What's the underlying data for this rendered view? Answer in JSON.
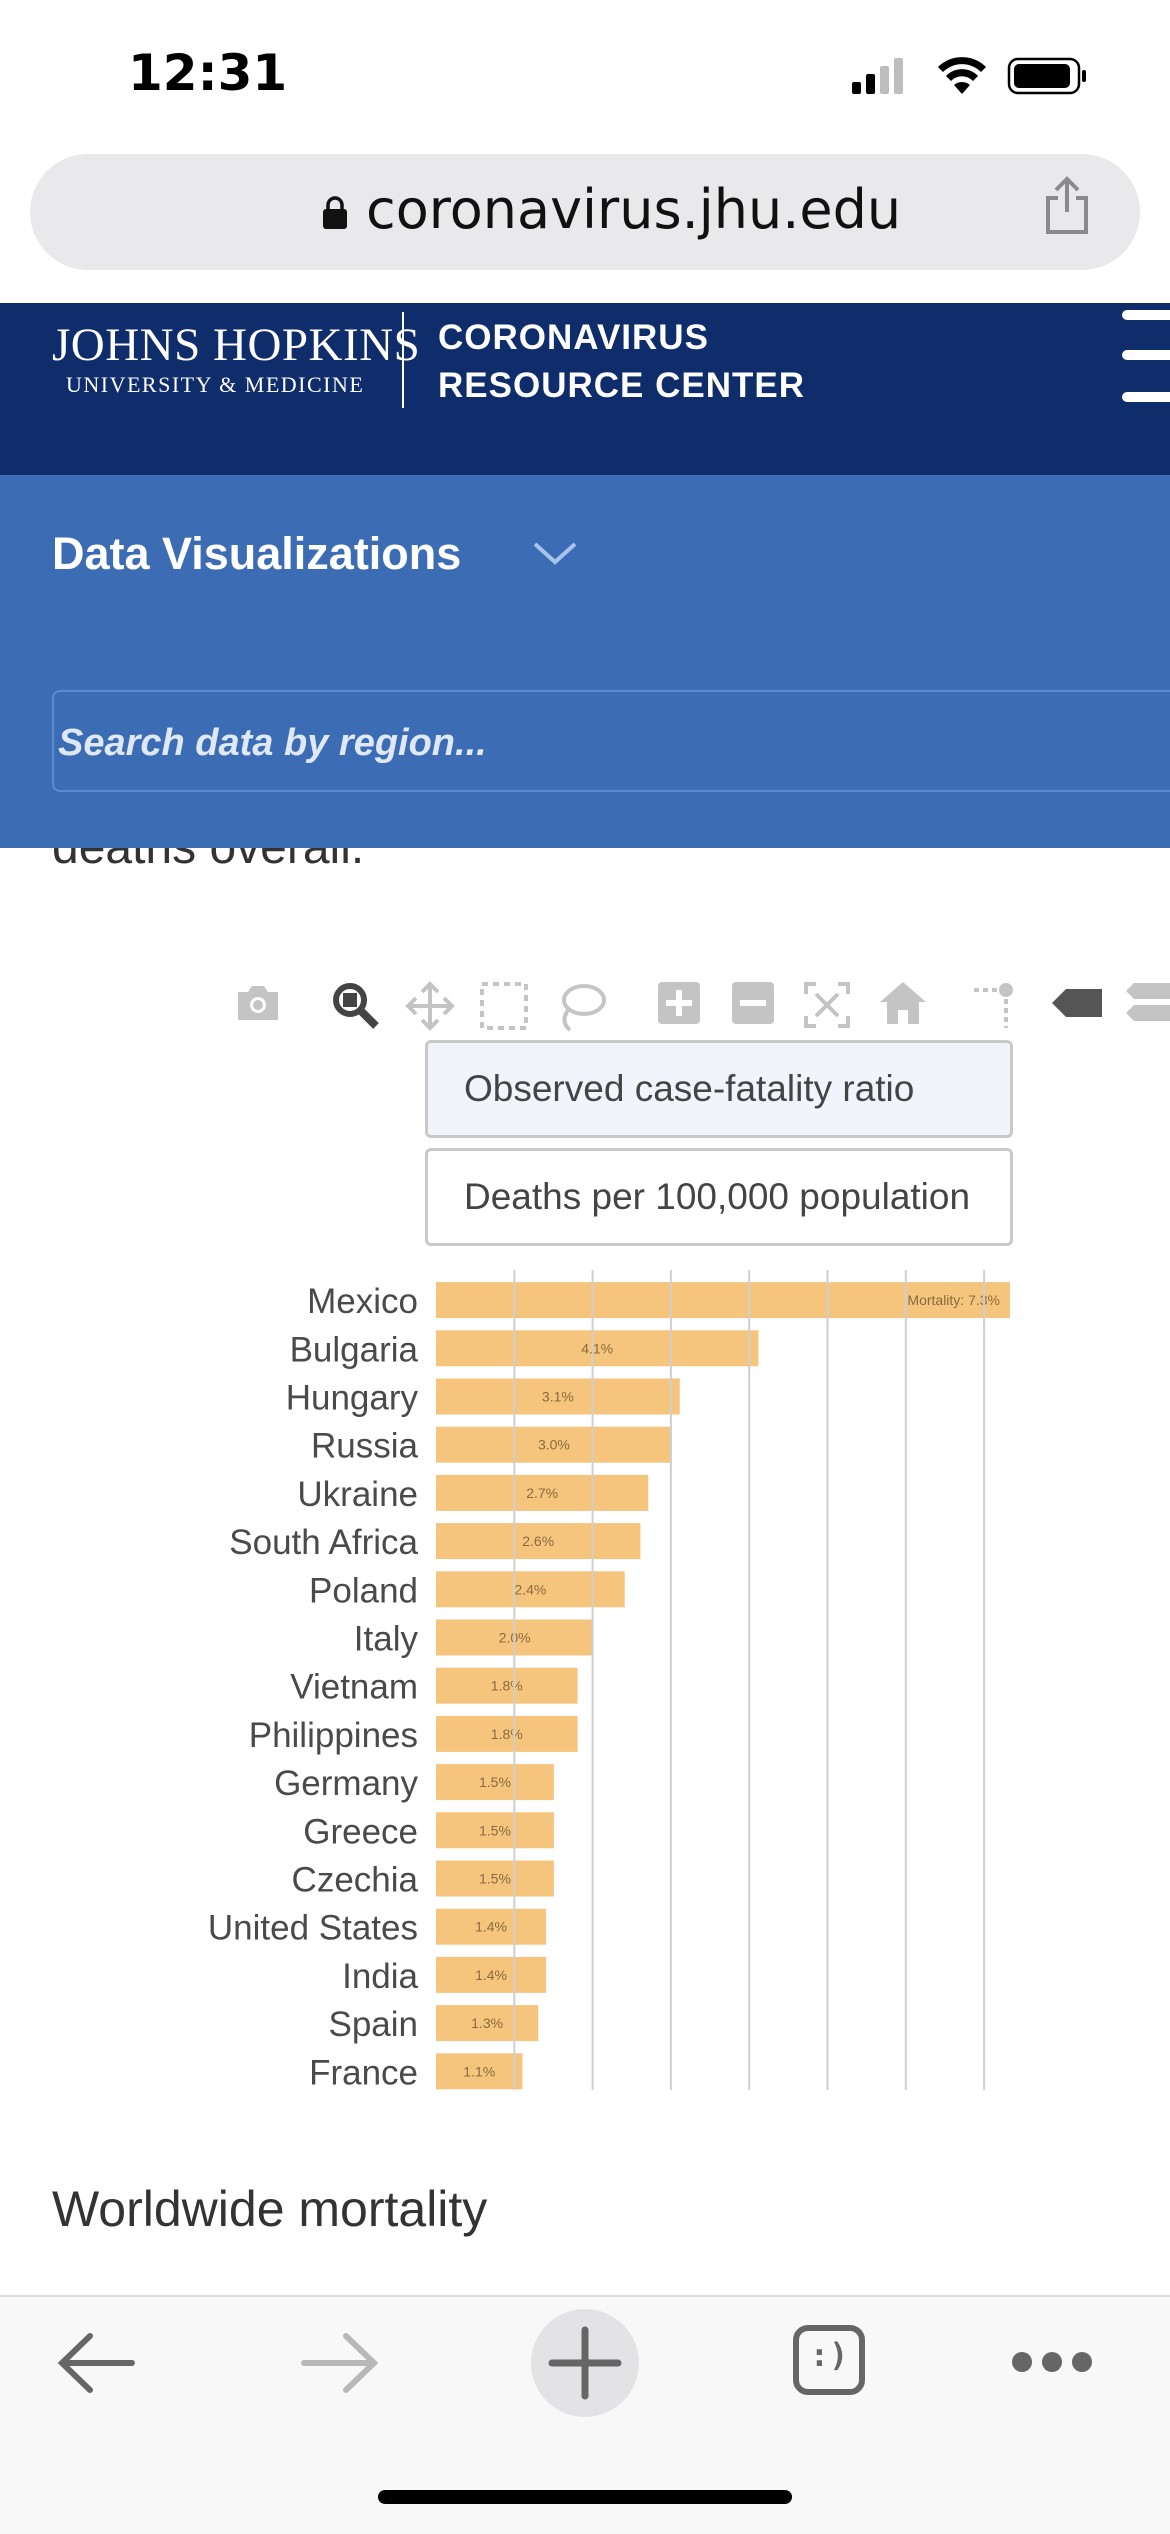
{
  "status_bar": {
    "time": "12:31",
    "icons": [
      "cellular-signal-icon",
      "wifi-icon",
      "battery-icon"
    ]
  },
  "browser": {
    "url": "coronavirus.jhu.edu",
    "icons": [
      "lock-icon",
      "share-icon"
    ]
  },
  "site_header": {
    "logo_line1": "JOHNS HOPKINS",
    "logo_line2": "UNIVERSITY & MEDICINE",
    "crc_line1": "CORONAVIRUS",
    "crc_line2": "RESOURCE CENTER",
    "icons": [
      "hamburger-menu-icon"
    ]
  },
  "data_viz": {
    "title": "Data Visualizations",
    "search_placeholder": "Search data by region...",
    "icons": [
      "chevron-down-icon"
    ]
  },
  "partial_text": "deaths overall.",
  "plot_toolbar": {
    "icons": [
      "camera-icon",
      "zoom-icon",
      "pan-icon",
      "box-select-icon",
      "lasso-select-icon",
      "zoom-in-icon",
      "zoom-out-icon",
      "autoscale-icon",
      "reset-axes-icon",
      "spike-lines-icon",
      "hover-closest-icon",
      "hover-compare-icon"
    ]
  },
  "options": {
    "cfr": "Observed case-fatality ratio",
    "deaths": "Deaths per 100,000 population"
  },
  "chart_data": {
    "type": "bar",
    "orientation": "horizontal",
    "categories": [
      "Mexico",
      "Bulgaria",
      "Hungary",
      "Russia",
      "Ukraine",
      "South Africa",
      "Poland",
      "Italy",
      "Vietnam",
      "Philippines",
      "Germany",
      "Greece",
      "Czechia",
      "United States",
      "India",
      "Spain",
      "France"
    ],
    "values": [
      7.3,
      4.1,
      3.1,
      3.0,
      2.7,
      2.6,
      2.4,
      2.0,
      1.8,
      1.8,
      1.5,
      1.5,
      1.5,
      1.4,
      1.4,
      1.3,
      1.1
    ],
    "labels": [
      "Mortality: 7.3%",
      "4.1%",
      "3.1%",
      "3.0%",
      "2.7%",
      "2.6%",
      "2.4%",
      "2.0%",
      "1.8%",
      "1.8%",
      "1.5%",
      "1.5%",
      "1.5%",
      "1.4%",
      "1.4%",
      "1.3%",
      "1.1%"
    ],
    "xlim": [
      0,
      7.3
    ],
    "grid": true,
    "bar_color": "#f5c57e"
  },
  "section_heading": "Worldwide mortality",
  "bottom_toolbar": {
    "icons": [
      "back-arrow-icon",
      "forward-arrow-icon",
      "new-tab-plus-icon",
      "tabs-icon",
      "more-icon"
    ],
    "tabs_glyph": ":)"
  }
}
